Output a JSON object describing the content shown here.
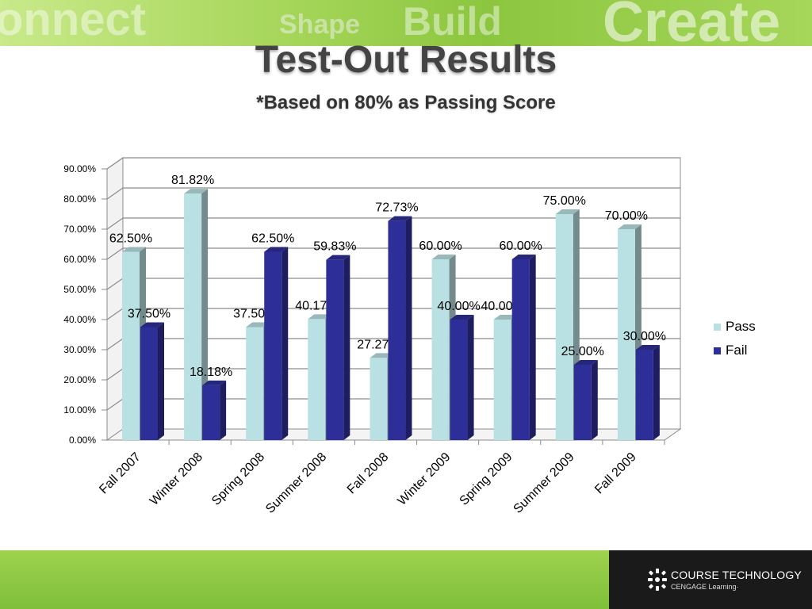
{
  "banner": {
    "words": [
      "onnect",
      "Shape",
      "Build",
      "Create"
    ]
  },
  "slide": {
    "title": "Test-Out Results",
    "subtitle": "*Based on 80% as Passing Score"
  },
  "footer": {
    "logo_line1": "COURSE TECHNOLOGY",
    "logo_line2": "CENGAGE Learning·",
    "logo_icon": "starburst-logo-icon"
  },
  "colors": {
    "pass": "#b9e0e2",
    "fail": "#2e2e99",
    "banner": "#8cc63f",
    "footer_green": "#8cc63f",
    "footer_dark": "#1a1a1a"
  },
  "chart_data": {
    "type": "bar",
    "style": "3d clustered column",
    "categories": [
      "Fall 2007",
      "Winter 2008",
      "Spring 2008",
      "Summer 2008",
      "Fall 2008",
      "Winter 2009",
      "Spring 2009",
      "Summer 2009",
      "Fall 2009"
    ],
    "series": [
      {
        "name": "Pass",
        "values": [
          62.5,
          81.82,
          37.5,
          40.17,
          27.27,
          60.0,
          40.0,
          75.0,
          70.0
        ],
        "labels": [
          "62.50%",
          "81.82%",
          "37.50%",
          "40.17%",
          "27.27%",
          "60.00%",
          "40.00%",
          "75.00%",
          "70.00%"
        ]
      },
      {
        "name": "Fail",
        "values": [
          37.5,
          18.18,
          62.5,
          59.83,
          72.73,
          40.0,
          60.0,
          25.0,
          30.0
        ],
        "labels": [
          "37.50%",
          "18.18%",
          "62.50%",
          "59.83%",
          "72.73%",
          "40.00%",
          "60.00%",
          "25.00%",
          "30.00%"
        ]
      }
    ],
    "yticks": [
      "0.00%",
      "10.00%",
      "20.00%",
      "30.00%",
      "40.00%",
      "50.00%",
      "60.00%",
      "70.00%",
      "80.00%",
      "90.00%"
    ],
    "ylim": [
      0,
      90
    ],
    "grid": true,
    "legend": "right"
  }
}
